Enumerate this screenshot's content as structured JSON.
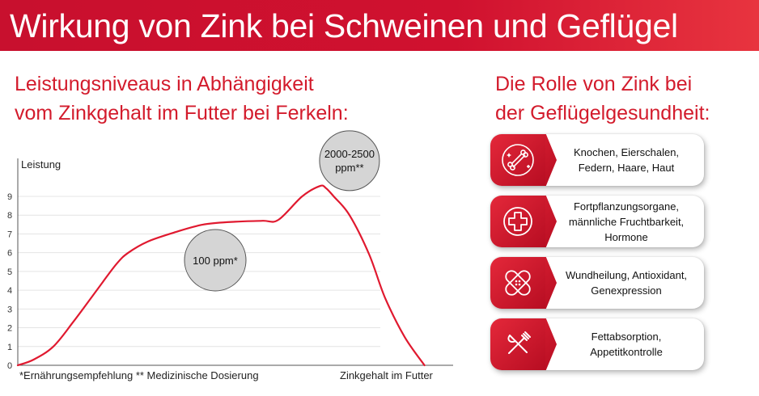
{
  "header": {
    "title": "Wirkung von Zink bei Schweinen und Geflügel"
  },
  "left": {
    "heading_line1": "Leistungsniveaus in Abhängigkeit",
    "heading_line2": "vom Zinkgehalt im Futter bei Ferkeln:"
  },
  "right": {
    "heading_line1": "Die Rolle von Zink bei",
    "heading_line2": "der Geflügelgesundheit:"
  },
  "chart_data": {
    "type": "line",
    "ylabel": "Leistung",
    "xlabel": "Zinkgehalt im Futter",
    "y_ticks": [
      "0",
      "1",
      "2",
      "3",
      "4",
      "5",
      "6",
      "7",
      "8",
      "9"
    ],
    "ylim": [
      0,
      10
    ],
    "xlim": [
      0,
      10
    ],
    "grid": true,
    "points": [
      {
        "x": 0,
        "y": 0
      },
      {
        "x": 0.4,
        "y": 0.3
      },
      {
        "x": 0.9,
        "y": 1.0
      },
      {
        "x": 1.4,
        "y": 2.3
      },
      {
        "x": 2.0,
        "y": 4.0
      },
      {
        "x": 2.5,
        "y": 5.4
      },
      {
        "x": 2.8,
        "y": 6.0
      },
      {
        "x": 3.3,
        "y": 6.6
      },
      {
        "x": 4.0,
        "y": 7.1
      },
      {
        "x": 4.7,
        "y": 7.5
      },
      {
        "x": 5.5,
        "y": 7.65
      },
      {
        "x": 6.2,
        "y": 7.7
      },
      {
        "x": 6.6,
        "y": 7.75
      },
      {
        "x": 7.2,
        "y": 9.0
      },
      {
        "x": 7.65,
        "y": 9.55
      },
      {
        "x": 7.8,
        "y": 9.45
      },
      {
        "x": 8.0,
        "y": 9.0
      },
      {
        "x": 8.4,
        "y": 8.0
      },
      {
        "x": 8.9,
        "y": 5.9
      },
      {
        "x": 9.3,
        "y": 3.6
      },
      {
        "x": 9.8,
        "y": 1.5
      },
      {
        "x": 10.3,
        "y": 0
      }
    ],
    "annotations": [
      {
        "label": "100 ppm*",
        "x": 5.0,
        "y": 5.6
      },
      {
        "label_line1": "2000-2500",
        "label_line2": "ppm**",
        "x": 8.4,
        "y": 10.9
      }
    ]
  },
  "footnotes": {
    "left": "*Ernährungsempfehlung ** Medizinische Dosierung",
    "right": "Zinkgehalt im Futter"
  },
  "cards": [
    {
      "icon": "bone-icon",
      "lines": [
        "Knochen, Eierschalen,",
        "Federn, Haare, Haut"
      ]
    },
    {
      "icon": "medical-cross-icon",
      "lines": [
        "Fortpflanzungsorgane,",
        "männliche Fruchtbarkeit,",
        "Hormone"
      ]
    },
    {
      "icon": "bandage-icon",
      "lines": [
        "Wundheilung, Antioxidant,",
        "Genexpression"
      ]
    },
    {
      "icon": "cutlery-icon",
      "lines": [
        "Fettabsorption,",
        "Appetitkontrolle"
      ]
    }
  ],
  "colors": {
    "brand_red": "#c8102e",
    "heading_red": "#d31b2c",
    "curve_red": "#e0192f",
    "bubble_fill": "#d5d5d5"
  }
}
